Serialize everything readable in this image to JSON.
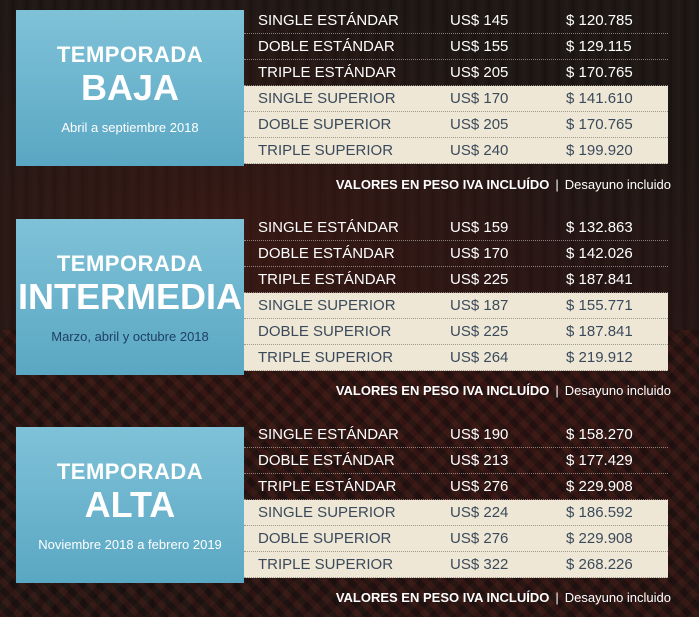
{
  "seasons": [
    {
      "title_top": "TEMPORADA",
      "title_big": "BAJA",
      "period": "Abril a septiembre 2018",
      "rows": [
        {
          "room": "SINGLE ESTÁNDAR",
          "usd": "US$ 145",
          "clp": "$ 120.785",
          "type": "std"
        },
        {
          "room": "DOBLE ESTÁNDAR",
          "usd": "US$ 155",
          "clp": "$ 129.115",
          "type": "std"
        },
        {
          "room": "TRIPLE ESTÁNDAR",
          "usd": "US$ 205",
          "clp": "$ 170.765",
          "type": "std"
        },
        {
          "room": "SINGLE SUPERIOR",
          "usd": "US$ 170",
          "clp": "$ 141.610",
          "type": "sup"
        },
        {
          "room": "DOBLE SUPERIOR",
          "usd": "US$ 205",
          "clp": "$ 170.765",
          "type": "sup"
        },
        {
          "room": "TRIPLE SUPERIOR",
          "usd": "US$ 240",
          "clp": "$ 199.920",
          "type": "sup"
        }
      ],
      "note_main": "VALORES EN PESO IVA INCLUÍDO",
      "note_sep": "|",
      "note_extra": "Desayuno incluido"
    },
    {
      "title_top": "TEMPORADA",
      "title_big": "INTERMEDIA",
      "period": "Marzo, abril y octubre 2018",
      "rows": [
        {
          "room": "SINGLE ESTÁNDAR",
          "usd": "US$ 159",
          "clp": "$ 132.863",
          "type": "std"
        },
        {
          "room": "DOBLE ESTÁNDAR",
          "usd": "US$ 170",
          "clp": "$ 142.026",
          "type": "std"
        },
        {
          "room": "TRIPLE ESTÁNDAR",
          "usd": "US$ 225",
          "clp": "$ 187.841",
          "type": "std"
        },
        {
          "room": "SINGLE SUPERIOR",
          "usd": "US$ 187",
          "clp": "$ 155.771",
          "type": "sup"
        },
        {
          "room": "DOBLE SUPERIOR",
          "usd": "US$ 225",
          "clp": "$ 187.841",
          "type": "sup"
        },
        {
          "room": "TRIPLE SUPERIOR",
          "usd": "US$ 264",
          "clp": "$ 219.912",
          "type": "sup"
        }
      ],
      "note_main": "VALORES EN PESO IVA INCLUÍDO",
      "note_sep": "|",
      "note_extra": "Desayuno incluido"
    },
    {
      "title_top": "TEMPORADA",
      "title_big": "ALTA",
      "period": "Noviembre 2018 a febrero 2019",
      "rows": [
        {
          "room": "SINGLE ESTÁNDAR",
          "usd": "US$ 190",
          "clp": "$ 158.270",
          "type": "std"
        },
        {
          "room": "DOBLE ESTÁNDAR",
          "usd": "US$ 213",
          "clp": "$ 177.429",
          "type": "std"
        },
        {
          "room": "TRIPLE ESTÁNDAR",
          "usd": "US$ 276",
          "clp": "$ 229.908",
          "type": "std"
        },
        {
          "room": "SINGLE SUPERIOR",
          "usd": "US$ 224",
          "clp": "$ 186.592",
          "type": "sup"
        },
        {
          "room": "DOBLE SUPERIOR",
          "usd": "US$ 276",
          "clp": "$ 229.908",
          "type": "sup"
        },
        {
          "room": "TRIPLE SUPERIOR",
          "usd": "US$ 322",
          "clp": "$ 268.226",
          "type": "sup"
        }
      ],
      "note_main": "VALORES EN PESO IVA INCLUÍDO",
      "note_sep": "|",
      "note_extra": "Desayuno incluido"
    }
  ]
}
